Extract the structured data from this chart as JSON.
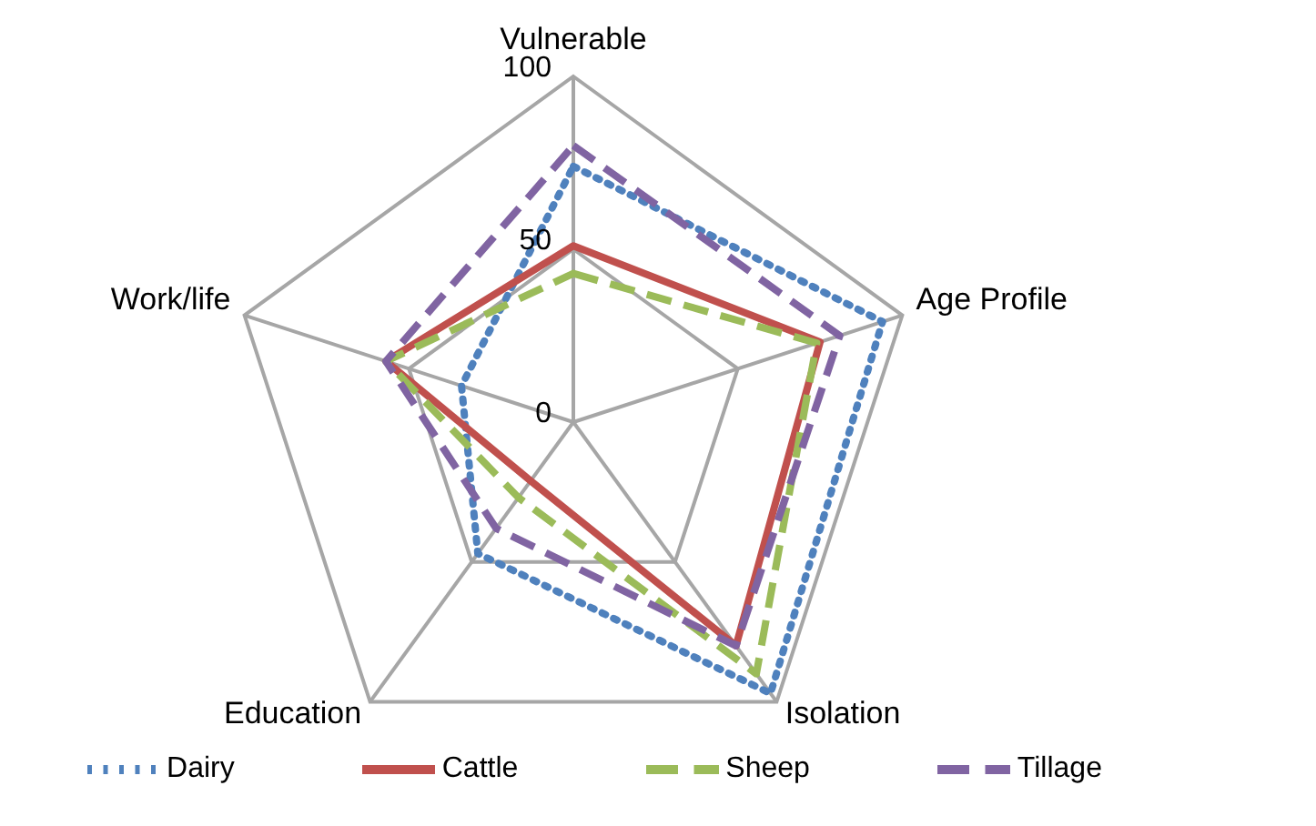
{
  "chart_data": {
    "type": "radar",
    "categories": [
      "Vulnerable",
      "Age Profile",
      "Isolation",
      "Education",
      "Work/life"
    ],
    "ylim": [
      0,
      100
    ],
    "yticks": [
      0,
      50,
      100
    ],
    "grid": true,
    "legend": "bottom",
    "marker": "none",
    "series": [
      {
        "name": "Dairy",
        "color": "#4f81bd",
        "line_style": "dotted",
        "values": [
          74,
          94,
          97,
          47,
          34
        ]
      },
      {
        "name": "Cattle",
        "color": "#c0504d",
        "line_style": "solid",
        "values": [
          51,
          75,
          80,
          21,
          57
        ]
      },
      {
        "name": "Sheep",
        "color": "#9bbb59",
        "line_style": "dashed",
        "values": [
          43,
          74,
          90,
          27,
          57
        ]
      },
      {
        "name": "Tillage",
        "color": "#8064a2",
        "line_style": "dashed",
        "values": [
          80,
          81,
          80,
          38,
          57
        ]
      }
    ]
  }
}
